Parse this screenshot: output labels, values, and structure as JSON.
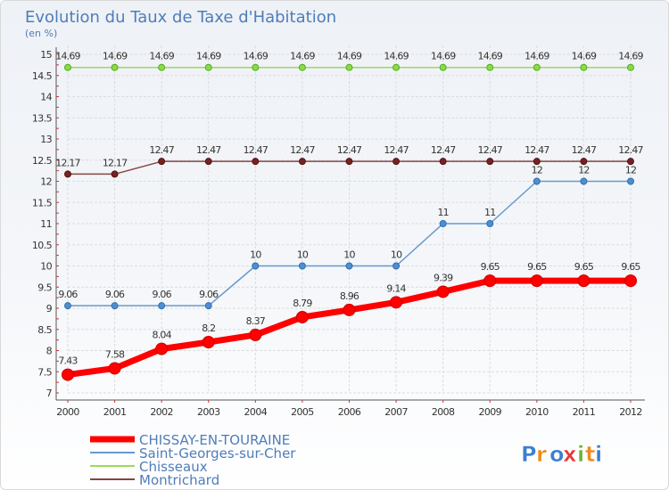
{
  "chart_data": {
    "type": "line",
    "title": "Evolution du Taux de Taxe d'Habitation",
    "subtitle": "(en %)",
    "xlabel": "",
    "ylabel": "",
    "categories": [
      "2000",
      "2001",
      "2002",
      "2003",
      "2004",
      "2005",
      "2006",
      "2007",
      "2008",
      "2009",
      "2010",
      "2011",
      "2012"
    ],
    "ylim": [
      7,
      15
    ],
    "yticks": [
      "7",
      "7.5",
      "8",
      "8.5",
      "9",
      "9.5",
      "10",
      "10.5",
      "11",
      "11.5",
      "12",
      "12.5",
      "13",
      "13.5",
      "14",
      "14.5",
      "15"
    ],
    "ytick_values": [
      7,
      7.5,
      8,
      8.5,
      9,
      9.5,
      10,
      10.5,
      11,
      11.5,
      12,
      12.5,
      13,
      13.5,
      14,
      14.5,
      15
    ],
    "series": [
      {
        "name": "CHISSAY-EN-TOURAINE",
        "color": "#ff0000",
        "values": [
          7.43,
          7.58,
          8.04,
          8.2,
          8.37,
          8.79,
          8.96,
          9.14,
          9.39,
          9.65,
          9.65,
          9.65,
          9.65
        ],
        "labels": [
          "7.43",
          "7.58",
          "8.04",
          "8.2",
          "8.37",
          "8.79",
          "8.96",
          "9.14",
          "9.39",
          "9.65",
          "9.65",
          "9.65",
          "9.65"
        ]
      },
      {
        "name": "Saint-Georges-sur-Cher",
        "color": "#6699cc",
        "values": [
          9.06,
          9.06,
          9.06,
          9.06,
          10,
          10,
          10,
          10,
          11,
          11,
          12,
          12,
          12
        ],
        "labels": [
          "9.06",
          "9.06",
          "9.06",
          "9.06",
          "10",
          "10",
          "10",
          "10",
          "11",
          "11",
          "12",
          "12",
          "12"
        ]
      },
      {
        "name": "Chisseaux",
        "color": "#99dd55",
        "values": [
          14.69,
          14.69,
          14.69,
          14.69,
          14.69,
          14.69,
          14.69,
          14.69,
          14.69,
          14.69,
          14.69,
          14.69,
          14.69
        ],
        "labels": [
          "14.69",
          "14.69",
          "14.69",
          "14.69",
          "14.69",
          "14.69",
          "14.69",
          "14.69",
          "14.69",
          "14.69",
          "14.69",
          "14.69",
          "14.69"
        ]
      },
      {
        "name": "Montrichard",
        "color": "#884444",
        "values": [
          12.17,
          12.17,
          12.47,
          12.47,
          12.47,
          12.47,
          12.47,
          12.47,
          12.47,
          12.47,
          12.47,
          12.47,
          12.47
        ],
        "labels": [
          "12.17",
          "12.17",
          "12.47",
          "12.47",
          "12.47",
          "12.47",
          "12.47",
          "12.47",
          "12.47",
          "12.47",
          "12.47",
          "12.47",
          "12.47"
        ]
      }
    ],
    "legend": {
      "entries": [
        "CHISSAY-EN-TOURAINE",
        "Saint-Georges-sur-Cher",
        "Chisseaux",
        "Montrichard"
      ],
      "placement": "bottom-left"
    },
    "grid": true
  },
  "logo": {
    "text": "Proxiti",
    "letters": [
      "P",
      "r",
      "o",
      "x",
      "i",
      "t",
      "i"
    ],
    "colors": [
      "#3a7fd0",
      "#f08a1c",
      "#3a7fd0",
      "#e23b3b",
      "#6ab534",
      "#f08a1c",
      "#3a7fd0"
    ]
  }
}
